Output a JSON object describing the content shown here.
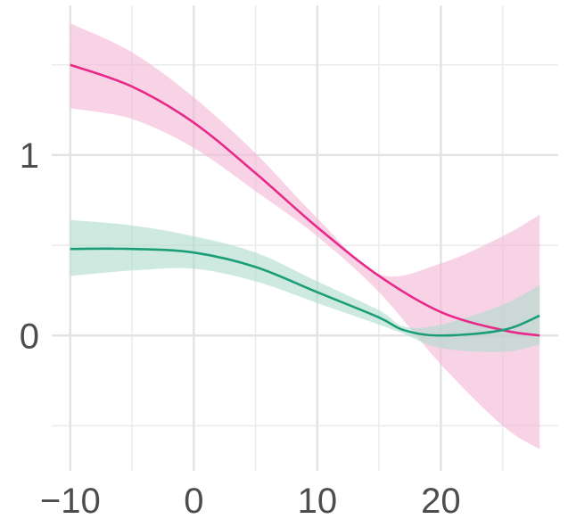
{
  "chart_data": {
    "type": "line",
    "title": "",
    "xlabel": "",
    "ylabel": "",
    "xlim": [
      -11.5,
      29.5
    ],
    "ylim": [
      -0.75,
      1.83
    ],
    "x_ticks": [
      -10,
      0,
      10,
      20
    ],
    "x_tick_labels": [
      "−10",
      "0",
      "10",
      "20"
    ],
    "x_minor_gridlines": [
      -5,
      5,
      15,
      25
    ],
    "y_ticks": [
      0,
      1
    ],
    "y_tick_labels": [
      "0",
      "1"
    ],
    "y_minor_gridlines": [
      -0.5,
      0.5,
      1.5
    ],
    "grid": true,
    "legend": "none",
    "series": [
      {
        "color": "#E7298A",
        "band_color": "#F4B6D6",
        "x": [
          -10,
          -5,
          0,
          5,
          10,
          15,
          20,
          25,
          28
        ],
        "y": [
          1.5,
          1.38,
          1.18,
          0.9,
          0.6,
          0.33,
          0.13,
          0.03,
          0.0
        ],
        "lower": [
          1.26,
          1.2,
          1.04,
          0.8,
          0.55,
          0.24,
          -0.16,
          -0.5,
          -0.63
        ],
        "upper": [
          1.73,
          1.57,
          1.32,
          1.01,
          0.65,
          0.34,
          0.4,
          0.55,
          0.67
        ]
      },
      {
        "color": "#1B9E77",
        "band_color": "#AEDCCB",
        "x": [
          -10,
          -5,
          0,
          5,
          10,
          15,
          17,
          20,
          25,
          28
        ],
        "y": [
          0.48,
          0.48,
          0.46,
          0.38,
          0.24,
          0.1,
          0.03,
          0.0,
          0.03,
          0.11
        ],
        "lower": [
          0.33,
          0.36,
          0.37,
          0.3,
          0.18,
          0.06,
          0.01,
          -0.07,
          -0.09,
          -0.05
        ],
        "upper": [
          0.64,
          0.61,
          0.55,
          0.46,
          0.3,
          0.14,
          0.05,
          0.06,
          0.17,
          0.28
        ]
      }
    ]
  }
}
